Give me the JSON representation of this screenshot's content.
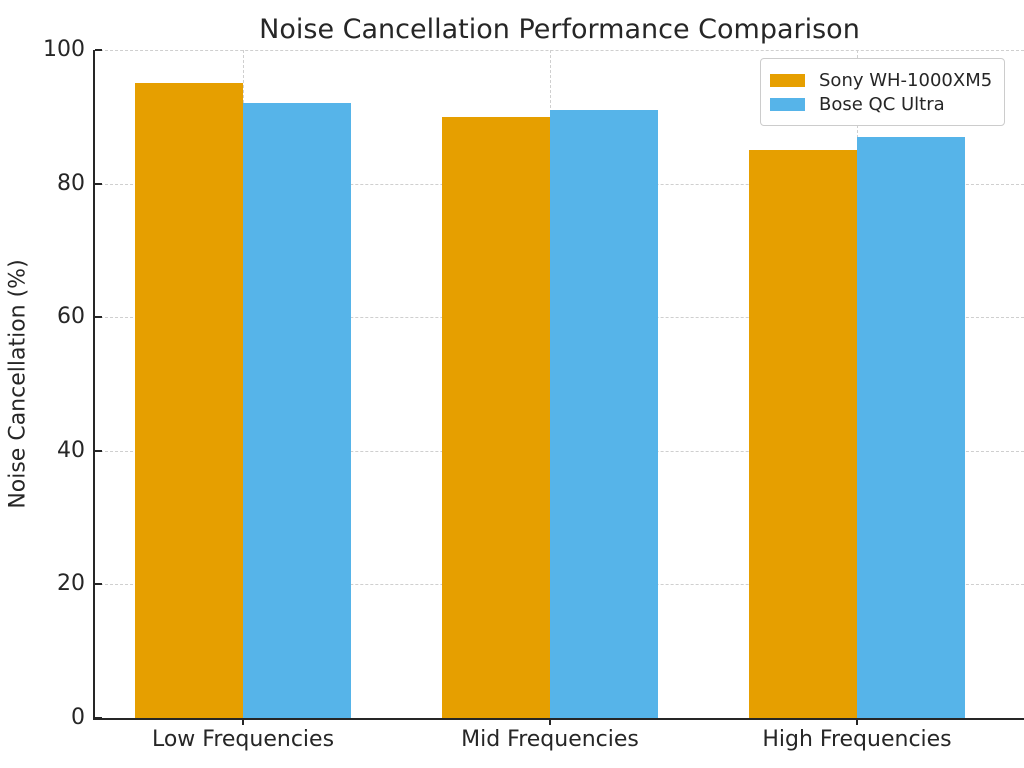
{
  "title": "Noise Cancellation Performance Comparison",
  "chart_data": {
    "type": "bar",
    "title": "Noise Cancellation Performance Comparison",
    "xlabel": "",
    "ylabel": "Noise Cancellation (%)",
    "categories": [
      "Low Frequencies",
      "Mid Frequencies",
      "High Frequencies"
    ],
    "series": [
      {
        "name": "Sony WH-1000XM5",
        "color": "#E69F00",
        "values": [
          95,
          90,
          85
        ]
      },
      {
        "name": "Bose QC Ultra",
        "color": "#56B4E9",
        "values": [
          92,
          91,
          87
        ]
      }
    ],
    "ylim": [
      0,
      100
    ],
    "yticks": [
      0,
      20,
      40,
      60,
      80,
      100
    ],
    "grid": "dashed both",
    "legend_position": "upper right"
  }
}
